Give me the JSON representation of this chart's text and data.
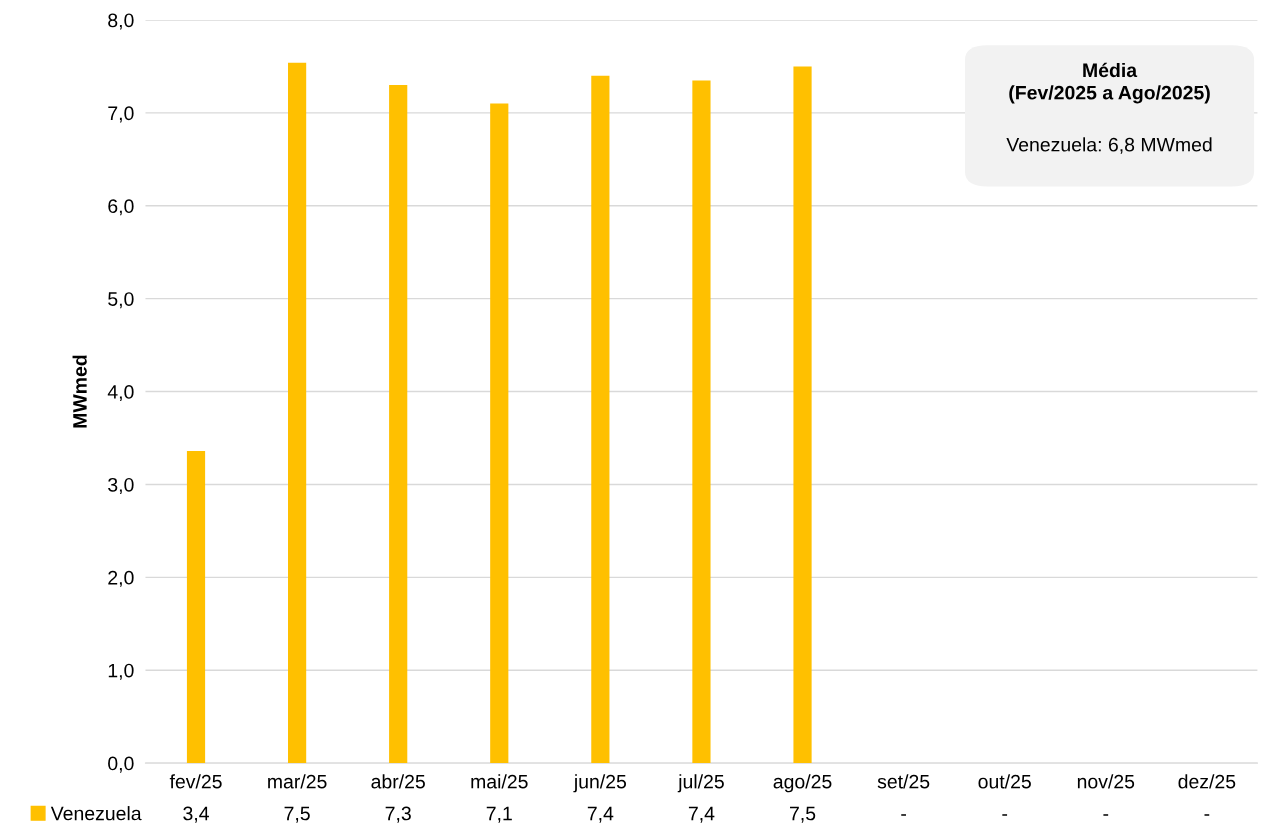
{
  "chart_data": {
    "type": "bar",
    "categories": [
      "fev/25",
      "mar/25",
      "abr/25",
      "mai/25",
      "jun/25",
      "jul/25",
      "ago/25",
      "set/25",
      "out/25",
      "nov/25",
      "dez/25"
    ],
    "series": [
      {
        "name": "Venezuela",
        "color": "#ffc000",
        "values": [
          3.36,
          7.54,
          7.3,
          7.1,
          7.4,
          7.35,
          7.5,
          null,
          null,
          null,
          null
        ],
        "value_labels": [
          "3,4",
          "7,5",
          "7,3",
          "7,1",
          "7,4",
          "7,4",
          "7,5",
          "-",
          "-",
          "-",
          "-"
        ]
      }
    ],
    "ylabel": "MWmed",
    "ylim": [
      0,
      8
    ],
    "yticks": [
      {
        "value": 0,
        "label": "0,0"
      },
      {
        "value": 1,
        "label": "1,0"
      },
      {
        "value": 2,
        "label": "2,0"
      },
      {
        "value": 3,
        "label": "3,0"
      },
      {
        "value": 4,
        "label": "4,0"
      },
      {
        "value": 5,
        "label": "5,0"
      },
      {
        "value": 6,
        "label": "6,0"
      },
      {
        "value": 7,
        "label": "7,0"
      },
      {
        "value": 8,
        "label": "8,0"
      }
    ],
    "grid": "y",
    "legend": "bottom",
    "annotations": [
      "Média\n(Fev/2025 a Ago/2025)",
      "Venezuela: 6,8 MWmed"
    ]
  }
}
